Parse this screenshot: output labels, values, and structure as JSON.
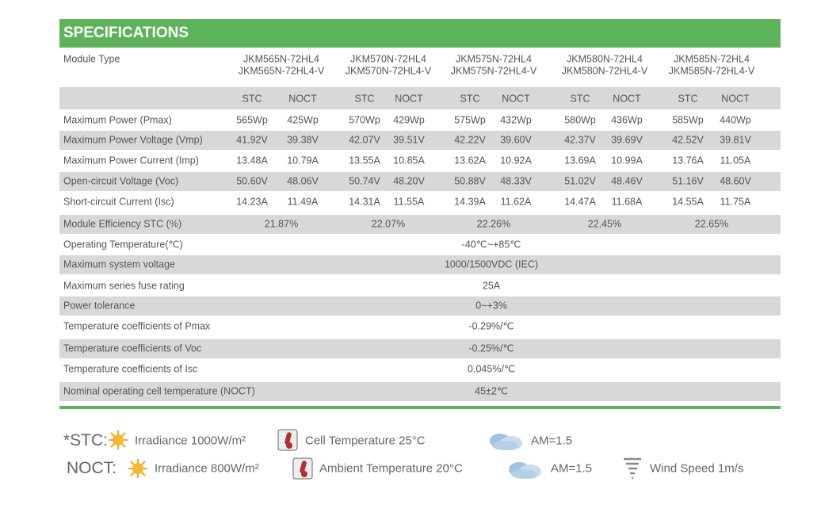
{
  "header": {
    "title": "SPECIFICATIONS"
  },
  "table": {
    "module_type": {
      "label": "Module Type",
      "models": [
        [
          "JKM565N-72HL4",
          "JKM565N-72HL4-V"
        ],
        [
          "JKM570N-72HL4",
          "JKM570N-72HL4-V"
        ],
        [
          "JKM575N-72HL4",
          "JKM575N-72HL4-V"
        ],
        [
          "JKM580N-72HL4",
          "JKM580N-72HL4-V"
        ],
        [
          "JKM585N-72HL4",
          "JKM585N-72HL4-V"
        ]
      ]
    },
    "condition_headers": [
      "STC",
      "NOCT",
      "STC",
      "NOCT",
      "STC",
      "NOCT",
      "STC",
      "NOCT",
      "STC",
      "NOCT"
    ],
    "rows": [
      {
        "label": "Maximum Power (Pmax)",
        "values": [
          "565Wp",
          "425Wp",
          "570Wp",
          "429Wp",
          "575Wp",
          "432Wp",
          "580Wp",
          "436Wp",
          "585Wp",
          "440Wp"
        ]
      },
      {
        "label": "Maximum Power Voltage (Vmp)",
        "values": [
          "41.92V",
          "39.38V",
          "42.07V",
          "39.51V",
          "42.22V",
          "39.60V",
          "42.37V",
          "39.69V",
          "42.52V",
          "39.81V"
        ]
      },
      {
        "label": "Maximum Power Current (Imp)",
        "values": [
          "13.48A",
          "10.79A",
          "13.55A",
          "10.85A",
          "13.62A",
          "10.92A",
          "13.69A",
          "10.99A",
          "13.76A",
          "11.05A"
        ]
      },
      {
        "label": "Open-circuit Voltage (Voc)",
        "values": [
          "50.60V",
          "48.06V",
          "50.74V",
          "48.20V",
          "50.88V",
          "48.33V",
          "51.02V",
          "48.46V",
          "51.16V",
          "48.60V"
        ]
      },
      {
        "label": "Short-circuit Current (Isc)",
        "values": [
          "14.23A",
          "11.49A",
          "14.31A",
          "11.55A",
          "14.39A",
          "11.62A",
          "14.47A",
          "11.68A",
          "14.55A",
          "11.75A"
        ]
      },
      {
        "label": "Module Efficiency STC (%)",
        "values": [
          "21.87%",
          "22.07%",
          "22.26%",
          "22.45%",
          "22.65%"
        ]
      },
      {
        "label": "Operating Temperature(℃)",
        "value": "-40℃~+85℃"
      },
      {
        "label": "Maximum system voltage",
        "value": "1000/1500VDC (IEC)"
      },
      {
        "label": "Maximum series fuse rating",
        "value": "25A"
      },
      {
        "label": "Power tolerance",
        "value": "0~+3%"
      },
      {
        "label": "Temperature coefficients of Pmax",
        "value": "-0.29%/℃"
      },
      {
        "label": "Temperature coefficients of Voc",
        "value": "-0.25%/℃"
      },
      {
        "label": "Temperature coefficients of Isc",
        "value": "0.045%/℃"
      },
      {
        "label": "Nominal operating cell temperature  (NOCT)",
        "value": "45±2℃"
      }
    ]
  },
  "legend": {
    "stc": {
      "label": "*STC:",
      "items": [
        "Irradiance 1000W/m²",
        "Cell Temperature 25°C",
        "AM=1.5"
      ]
    },
    "noct": {
      "label": "NOCT:",
      "items": [
        "Irradiance 800W/m²",
        "Ambient Temperature 20°C",
        "AM=1.5",
        "Wind Speed 1m/s"
      ]
    }
  }
}
